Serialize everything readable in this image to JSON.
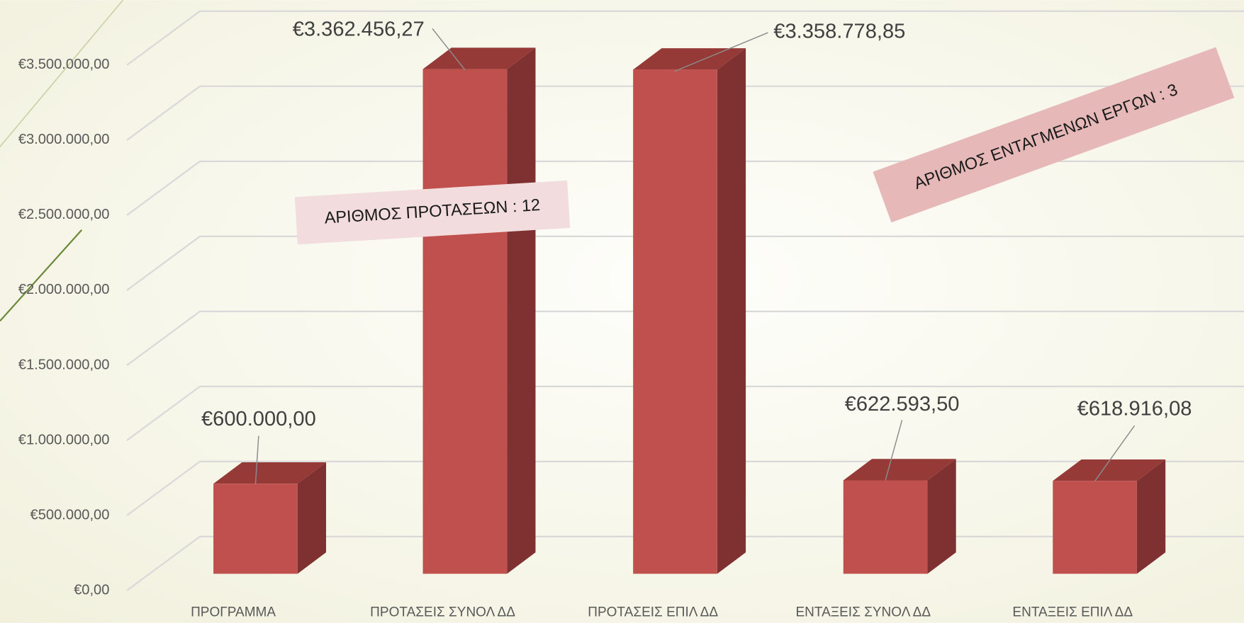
{
  "chart_data": {
    "type": "bar3d",
    "categories": [
      "ΠΡΟΓΡΑΜΜΑ",
      "ΠΡΟΤΑΣΕΙΣ ΣΥΝΟΛ ΔΔ",
      "ΠΡΟΤΑΣΕΙΣ ΕΠΙΛ ΔΔ",
      "ΕΝΤΑΞΕΙΣ ΣΥΝΟΛ ΔΔ",
      "ΕΝΤΑΞΕΙΣ ΕΠΙΛ ΔΔ"
    ],
    "values": [
      600000,
      3362456.27,
      3358778.85,
      622593.5,
      618916.08
    ],
    "value_labels": [
      "€600.000,00",
      "€3.362.456,27",
      "€3.358.778,85",
      "€622.593,50",
      "€618.916,08"
    ],
    "color": "#c0504d",
    "ylim": [
      0,
      3500000
    ],
    "yticks": [
      {
        "value": 0,
        "label": "€0,00"
      },
      {
        "value": 500000,
        "label": "€500.000,00"
      },
      {
        "value": 1000000,
        "label": "€1.000.000,00"
      },
      {
        "value": 1500000,
        "label": "€1.500.000,00"
      },
      {
        "value": 2000000,
        "label": "€2.000.000,00"
      },
      {
        "value": 2500000,
        "label": "€2.500.000,00"
      },
      {
        "value": 3000000,
        "label": "€3.000.000,00"
      },
      {
        "value": 3500000,
        "label": "€3.500.000,00"
      }
    ],
    "grid": true,
    "annotations": [
      "ΑΡΙΘΜΟΣ ΠΡΟΤΑΣΕΩΝ : 12",
      "ΑΡΙΘΜΟΣ ΕΝΤΑΓΜΕΝΩΝ ΕΡΓΩΝ : 3"
    ]
  }
}
